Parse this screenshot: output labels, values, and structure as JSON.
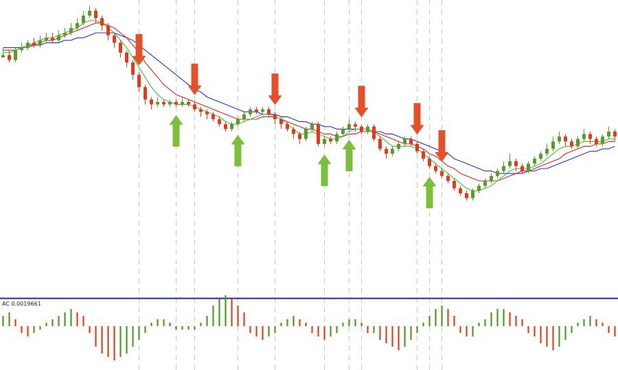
{
  "chart_data": {
    "type": "candlestick",
    "panels": [
      "price",
      "accelerator_oscillator"
    ],
    "colors": {
      "bull_candle": "#5a9a26",
      "bear_candle": "#e03a1a",
      "ma_fast": "#2ecc2e",
      "ma_mid": "#e02020",
      "ma_slow": "#2030d8",
      "arrow_down": "#e4502a",
      "arrow_up": "#7cbf3a",
      "ac_up": "#4e9a22",
      "ac_down": "#e0401c",
      "separator": "#1a2a9a",
      "vline": "#c8c8c8"
    },
    "grid": false,
    "legend": "none",
    "price_ylim": [
      0,
      100
    ],
    "candles": [
      [
        80,
        81,
        84,
        80
      ],
      [
        81,
        79,
        83,
        78
      ],
      [
        79,
        83,
        84,
        78
      ],
      [
        83,
        84,
        86,
        82
      ],
      [
        84,
        86,
        87,
        83
      ],
      [
        86,
        85,
        88,
        84
      ],
      [
        85,
        87,
        89,
        84
      ],
      [
        87,
        88,
        90,
        86
      ],
      [
        88,
        87,
        90,
        86
      ],
      [
        87,
        89,
        91,
        86
      ],
      [
        89,
        90,
        92,
        88
      ],
      [
        90,
        92,
        94,
        89
      ],
      [
        92,
        94,
        96,
        91
      ],
      [
        94,
        97,
        99,
        93
      ],
      [
        97,
        99,
        101,
        96
      ],
      [
        99,
        96,
        100,
        94
      ],
      [
        96,
        93,
        97,
        91
      ],
      [
        93,
        89,
        94,
        87
      ],
      [
        89,
        86,
        90,
        84
      ],
      [
        86,
        82,
        87,
        80
      ],
      [
        82,
        78,
        83,
        76
      ],
      [
        78,
        73,
        79,
        71
      ],
      [
        73,
        68,
        74,
        66
      ],
      [
        68,
        63,
        69,
        61
      ],
      [
        63,
        61,
        64,
        59
      ],
      [
        61,
        62,
        64,
        60
      ],
      [
        62,
        61,
        63,
        60
      ],
      [
        61,
        62,
        63,
        60
      ],
      [
        62,
        61,
        63,
        60
      ],
      [
        61,
        62,
        64,
        60
      ],
      [
        62,
        61,
        63,
        60
      ],
      [
        61,
        59,
        62,
        58
      ],
      [
        59,
        58,
        60,
        56
      ],
      [
        58,
        57,
        59,
        55
      ],
      [
        57,
        55,
        58,
        54
      ],
      [
        55,
        53,
        56,
        52
      ],
      [
        53,
        51,
        54,
        50
      ],
      [
        51,
        53,
        54,
        50
      ],
      [
        53,
        55,
        56,
        52
      ],
      [
        55,
        57,
        58,
        54
      ],
      [
        57,
        59,
        60,
        56
      ],
      [
        59,
        58,
        60,
        57
      ],
      [
        58,
        59,
        60,
        57
      ],
      [
        59,
        57,
        60,
        56
      ],
      [
        57,
        55,
        58,
        53
      ],
      [
        55,
        53,
        56,
        51
      ],
      [
        53,
        51,
        54,
        50
      ],
      [
        51,
        49,
        52,
        47
      ],
      [
        49,
        47,
        50,
        45
      ],
      [
        47,
        51,
        52,
        46
      ],
      [
        51,
        53,
        54,
        50
      ],
      [
        53,
        45,
        54,
        44
      ],
      [
        45,
        47,
        48,
        44
      ],
      [
        47,
        46,
        48,
        45
      ],
      [
        46,
        49,
        50,
        45
      ],
      [
        49,
        51,
        52,
        48
      ],
      [
        51,
        53,
        55,
        50
      ],
      [
        53,
        52,
        54,
        50
      ],
      [
        52,
        50,
        53,
        49
      ],
      [
        50,
        52,
        53,
        49
      ],
      [
        52,
        47,
        53,
        46
      ],
      [
        47,
        43,
        48,
        42
      ],
      [
        43,
        41,
        44,
        39
      ],
      [
        41,
        43,
        44,
        40
      ],
      [
        43,
        45,
        46,
        42
      ],
      [
        45,
        47,
        48,
        44
      ],
      [
        47,
        45,
        48,
        44
      ],
      [
        45,
        42,
        46,
        41
      ],
      [
        42,
        39,
        43,
        38
      ],
      [
        39,
        36,
        40,
        35
      ],
      [
        36,
        34,
        37,
        33
      ],
      [
        34,
        32,
        35,
        31
      ],
      [
        32,
        30,
        33,
        29
      ],
      [
        30,
        27,
        31,
        26
      ],
      [
        27,
        25,
        28,
        24
      ],
      [
        25,
        23,
        26,
        22
      ],
      [
        23,
        26,
        27,
        22
      ],
      [
        26,
        28,
        29,
        25
      ],
      [
        28,
        30,
        31,
        27
      ],
      [
        30,
        32,
        33,
        29
      ],
      [
        32,
        34,
        35,
        31
      ],
      [
        34,
        36,
        38,
        33
      ],
      [
        36,
        38,
        41,
        35
      ],
      [
        38,
        36,
        39,
        34
      ],
      [
        36,
        34,
        37,
        33
      ],
      [
        34,
        37,
        38,
        33
      ],
      [
        37,
        39,
        40,
        36
      ],
      [
        39,
        41,
        42,
        38
      ],
      [
        41,
        43,
        45,
        40
      ],
      [
        43,
        46,
        48,
        42
      ],
      [
        46,
        48,
        50,
        45
      ],
      [
        48,
        46,
        49,
        44
      ],
      [
        46,
        44,
        47,
        43
      ],
      [
        44,
        47,
        48,
        43
      ],
      [
        47,
        49,
        51,
        46
      ],
      [
        49,
        47,
        50,
        45
      ],
      [
        47,
        45,
        48,
        44
      ],
      [
        45,
        48,
        49,
        44
      ],
      [
        48,
        50,
        52,
        47
      ],
      [
        50,
        48,
        51,
        46
      ]
    ],
    "ma_fast": [
      82,
      82,
      83,
      84,
      85,
      86,
      87,
      88,
      88,
      89,
      90,
      91,
      92,
      94,
      95,
      95,
      94,
      92,
      90,
      87,
      84,
      80,
      76,
      72,
      68,
      65,
      63,
      62,
      61,
      61,
      61,
      60,
      59,
      58,
      57,
      56,
      54,
      53,
      53,
      54,
      55,
      56,
      57,
      57,
      56,
      55,
      53,
      51,
      49,
      49,
      50,
      49,
      48,
      47,
      47,
      48,
      50,
      51,
      51,
      51,
      50,
      48,
      46,
      44,
      44,
      44,
      44,
      43,
      41,
      39,
      37,
      35,
      33,
      31,
      29,
      27,
      26,
      26,
      27,
      28,
      30,
      32,
      34,
      35,
      35,
      35,
      36,
      37,
      39,
      41,
      43,
      44,
      44,
      45,
      46,
      46,
      46,
      46,
      47,
      47
    ],
    "ma_mid": [
      83,
      83,
      83,
      84,
      84,
      85,
      86,
      87,
      87,
      88,
      89,
      90,
      91,
      92,
      93,
      94,
      94,
      93,
      92,
      90,
      88,
      85,
      82,
      78,
      75,
      72,
      69,
      67,
      65,
      64,
      63,
      62,
      61,
      60,
      59,
      58,
      57,
      56,
      55,
      55,
      55,
      55,
      56,
      56,
      56,
      55,
      54,
      53,
      52,
      51,
      51,
      50,
      49,
      49,
      48,
      48,
      49,
      49,
      50,
      50,
      50,
      49,
      48,
      47,
      46,
      45,
      45,
      44,
      43,
      41,
      40,
      38,
      36,
      35,
      33,
      32,
      31,
      30,
      30,
      30,
      30,
      31,
      32,
      33,
      34,
      34,
      35,
      36,
      37,
      38,
      39,
      41,
      42,
      43,
      44,
      44,
      45,
      45,
      46,
      46
    ],
    "ma_slow": [
      84,
      84,
      84,
      84,
      85,
      85,
      85,
      86,
      86,
      86,
      87,
      87,
      88,
      88,
      89,
      90,
      90,
      90,
      90,
      89,
      88,
      87,
      85,
      83,
      81,
      79,
      77,
      75,
      73,
      71,
      69,
      67,
      66,
      64,
      63,
      62,
      61,
      60,
      59,
      58,
      58,
      58,
      57,
      57,
      57,
      56,
      56,
      55,
      54,
      54,
      53,
      53,
      52,
      52,
      51,
      51,
      51,
      51,
      51,
      51,
      50,
      50,
      49,
      49,
      48,
      47,
      47,
      46,
      45,
      44,
      43,
      42,
      41,
      39,
      38,
      37,
      36,
      35,
      34,
      34,
      33,
      33,
      33,
      33,
      33,
      34,
      34,
      35,
      35,
      36,
      37,
      38,
      39,
      40,
      41,
      42,
      42,
      43,
      43,
      44
    ],
    "ac_label": "AC 0.0019661",
    "ac_values": [
      3,
      4,
      2,
      -2,
      -3,
      -2,
      -1,
      1,
      2,
      3,
      4,
      5,
      4,
      3,
      -2,
      -6,
      -8,
      -9,
      -10,
      -9,
      -8,
      -6,
      -4,
      -2,
      1,
      2,
      2,
      1,
      -1,
      -1,
      -1,
      -1,
      1,
      3,
      6,
      8,
      9,
      8,
      6,
      4,
      -2,
      -3,
      -4,
      -3,
      -2,
      1,
      2,
      3,
      2,
      1,
      -2,
      -3,
      -4,
      -3,
      -2,
      1,
      2,
      2,
      1,
      -2,
      -2,
      -4,
      -5,
      -6,
      -7,
      -6,
      -4,
      -2,
      1,
      3,
      5,
      6,
      5,
      3,
      -2,
      -3,
      -3,
      1,
      2,
      4,
      5,
      5,
      4,
      3,
      2,
      -2,
      -3,
      -5,
      -6,
      -7,
      -6,
      -4,
      -2,
      1,
      2,
      3,
      2,
      1,
      -2,
      -3
    ],
    "signals_down": [
      22,
      31,
      44,
      58,
      67,
      71
    ],
    "signals_up": [
      28,
      38,
      52,
      56,
      69
    ]
  }
}
